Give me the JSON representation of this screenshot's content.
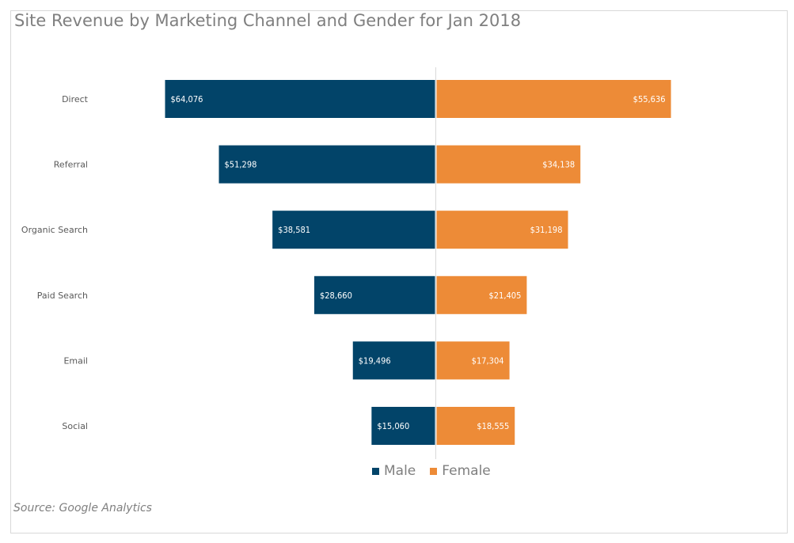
{
  "chart_data": {
    "type": "bar",
    "orientation": "horizontal-diverging",
    "title": "Site Revenue by Marketing Channel and Gender for Jan 2018",
    "source": "Source: Google Analytics",
    "categories": [
      "Direct",
      "Referral",
      "Organic Search",
      "Paid Search",
      "Email",
      "Social"
    ],
    "series": [
      {
        "name": "Male",
        "color": "#024469",
        "values": [
          64076,
          51298,
          38581,
          28660,
          19496,
          15060
        ],
        "labels": [
          "$64,076",
          "$51,298",
          "$38,581",
          "$28,660",
          "$19,496",
          "$15,060"
        ]
      },
      {
        "name": "Female",
        "color": "#ed8b37",
        "values": [
          55636,
          34138,
          31198,
          21405,
          17304,
          18555
        ],
        "labels": [
          "$55,636",
          "$34,138",
          "$31,198",
          "$21,405",
          "$17,304",
          "$18,555"
        ]
      }
    ],
    "legend_position": "bottom",
    "xlabel": "",
    "ylabel": "",
    "grid": false
  }
}
